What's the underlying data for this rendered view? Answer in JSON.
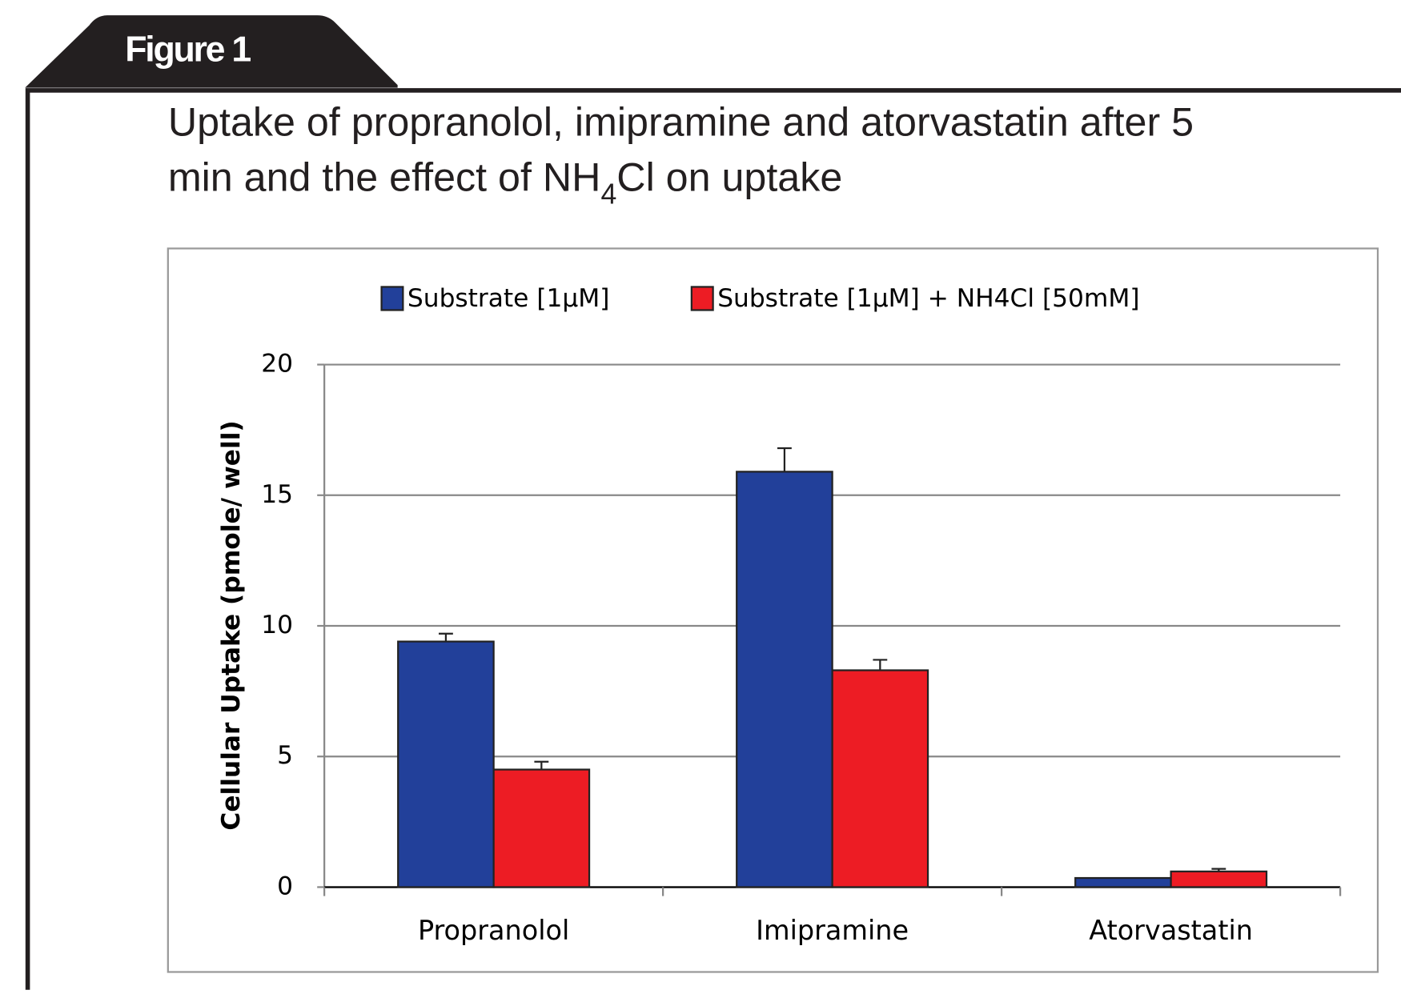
{
  "figure_label": "Figure 1",
  "chart_data": {
    "type": "bar",
    "title": [
      "Uptake of propranolol, imipramine and atorvastatin after 5",
      "min and the effect of NH",
      "4",
      "Cl on uptake"
    ],
    "y_label": "Cellular Uptake (pmole/ well)",
    "categories": [
      "Propranolol",
      "Imipramine",
      "Atorvastatin"
    ],
    "series": [
      {
        "name": "Substrate [1µM]",
        "color": "#22409a",
        "values": [
          9.4,
          15.9,
          0.35
        ],
        "errors": [
          0.3,
          0.9,
          null
        ]
      },
      {
        "name": "Substrate [1µM] + NH4Cl [50mM]",
        "color": "#ed1c24",
        "values": [
          4.5,
          8.3,
          0.6
        ],
        "errors": [
          0.3,
          0.4,
          0.1
        ]
      }
    ],
    "ylim": [
      0,
      20
    ],
    "yticks": [
      0,
      5,
      10,
      15,
      20
    ],
    "grid": true,
    "legend": "top"
  }
}
